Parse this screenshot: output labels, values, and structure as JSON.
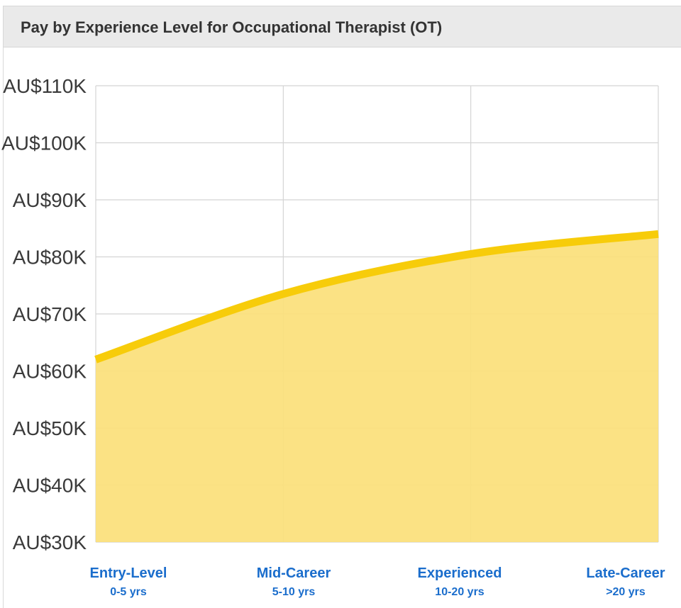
{
  "title": "Pay by Experience Level for Occupational Therapist (OT)",
  "colors": {
    "line": "#f7cc0a",
    "fill": "#fbe07a",
    "grid": "#d4d4d4",
    "label": "#1a6dcc"
  },
  "chart_data": {
    "type": "area",
    "title": "Pay by Experience Level for Occupational Therapist (OT)",
    "categories": [
      "Entry-Level",
      "Mid-Career",
      "Experienced",
      "Late-Career"
    ],
    "category_subtitles": [
      "0-5 yrs",
      "5-10 yrs",
      "10-20 yrs",
      ">20 yrs"
    ],
    "series": [
      {
        "name": "Pay",
        "values": [
          62000,
          73500,
          80500,
          84000
        ]
      }
    ],
    "ylim": [
      30000,
      110000
    ],
    "yticks": [
      30000,
      40000,
      50000,
      60000,
      70000,
      80000,
      90000,
      100000,
      110000
    ],
    "ytick_labels": [
      "AU$30K",
      "AU$40K",
      "AU$50K",
      "AU$60K",
      "AU$70K",
      "AU$80K",
      "AU$90K",
      "AU$100K",
      "AU$110K"
    ],
    "grid": true,
    "xlabel": "",
    "ylabel": ""
  }
}
